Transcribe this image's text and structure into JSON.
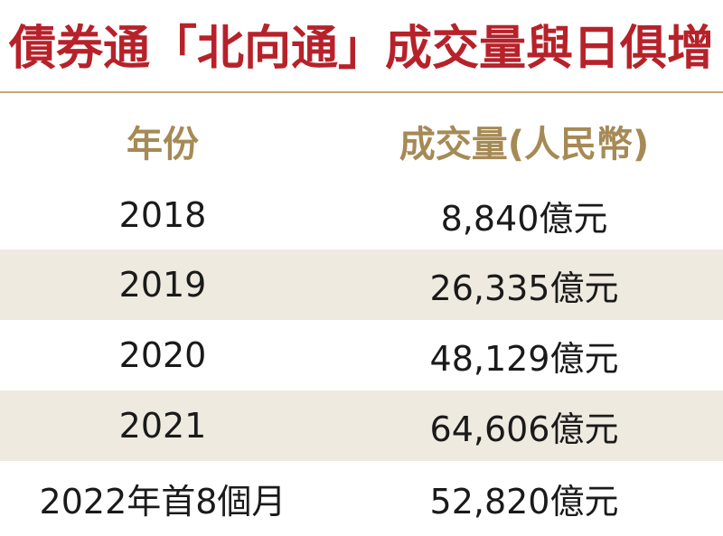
{
  "title": "債券通「北向通」成交量與日俱增",
  "table": {
    "headers": {
      "year": "年份",
      "volume": "成交量(人民幣)"
    },
    "rows": [
      {
        "year": "2018",
        "volume": "8,840億元"
      },
      {
        "year": "2019",
        "volume": "26,335億元"
      },
      {
        "year": "2020",
        "volume": "48,129億元"
      },
      {
        "year": "2021",
        "volume": "64,606億元"
      },
      {
        "year": "2022年首8個月",
        "volume": "52,820億元"
      }
    ]
  },
  "colors": {
    "title": "#b7222a",
    "header_text": "#a68a55",
    "rule": "#c2a878",
    "shaded_row": "#efeae0",
    "body_text": "#1a1a1a"
  }
}
